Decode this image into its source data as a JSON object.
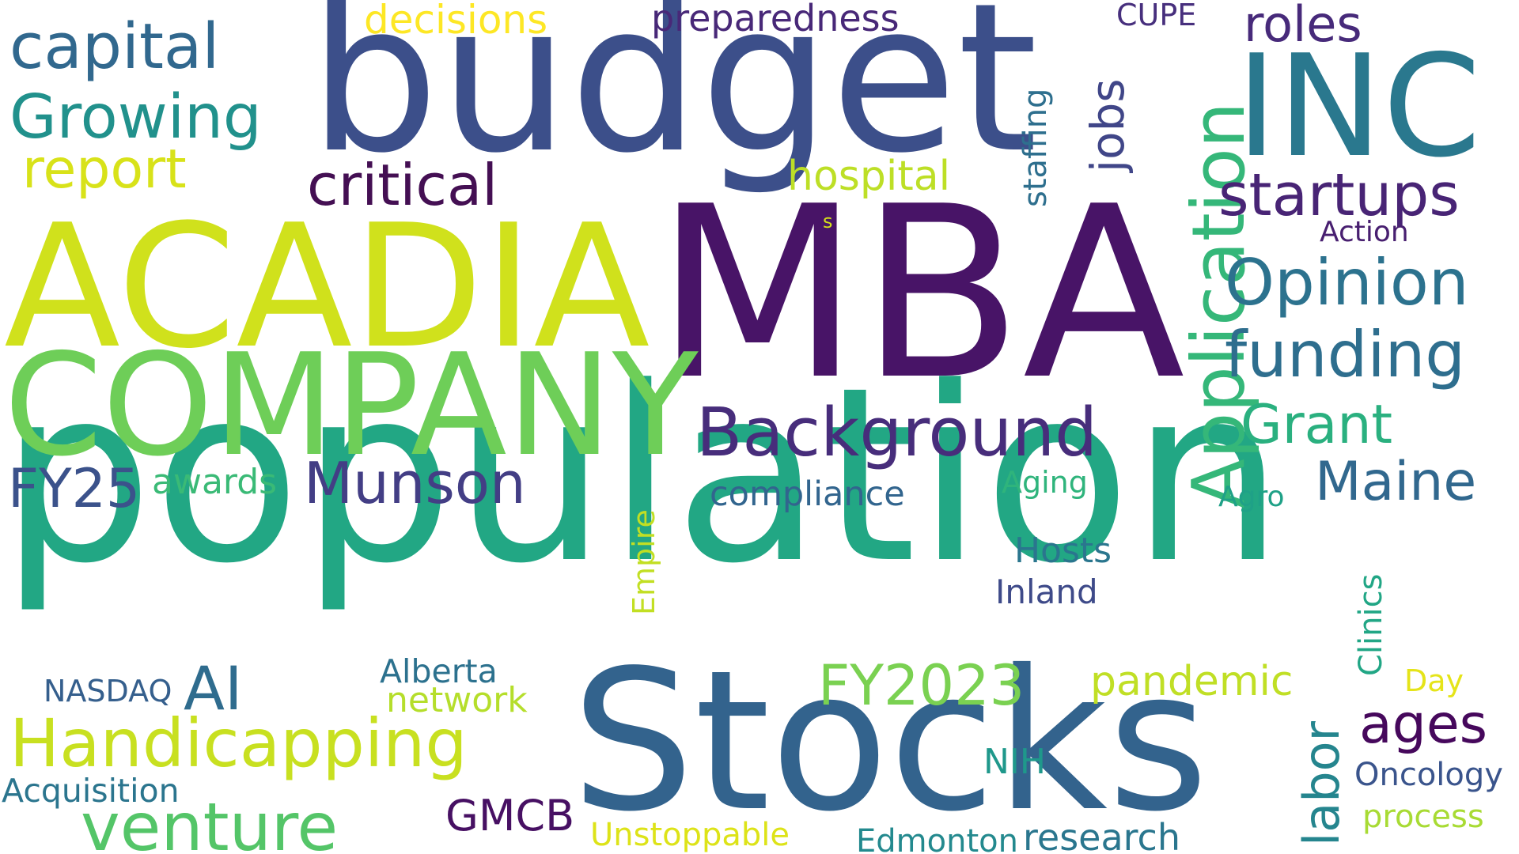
{
  "words": [
    {
      "id": "population",
      "text": "population",
      "color": "#22a784"
    },
    {
      "id": "mba",
      "text": "MBA",
      "color": "#481467"
    },
    {
      "id": "budget",
      "text": "budget",
      "color": "#3c4f8a"
    },
    {
      "id": "stocks",
      "text": "Stocks",
      "color": "#33638d"
    },
    {
      "id": "acadia",
      "text": "ACADIA",
      "color": "#d0e11c"
    },
    {
      "id": "company",
      "text": "COMPANY",
      "color": "#6ece58"
    },
    {
      "id": "inc",
      "text": "INC",
      "color": "#2a788e"
    },
    {
      "id": "application",
      "text": "Application",
      "color": "#35b779"
    },
    {
      "id": "background",
      "text": "Background",
      "color": "#472d7b"
    },
    {
      "id": "handicapping",
      "text": "Handicapping",
      "color": "#c8e020"
    },
    {
      "id": "venture",
      "text": "venture",
      "color": "#54c568"
    },
    {
      "id": "munson",
      "text": "Munson",
      "color": "#433e85"
    },
    {
      "id": "opinion",
      "text": "Opinion",
      "color": "#2c728e"
    },
    {
      "id": "funding",
      "text": "funding",
      "color": "#2e6e8e"
    },
    {
      "id": "startups",
      "text": "startups",
      "color": "#482475"
    },
    {
      "id": "capital",
      "text": "capital",
      "color": "#31688e"
    },
    {
      "id": "growing",
      "text": "Growing",
      "color": "#21918c"
    },
    {
      "id": "critical",
      "text": "critical",
      "color": "#440f53"
    },
    {
      "id": "report",
      "text": "report",
      "color": "#d8e219"
    },
    {
      "id": "maine",
      "text": "Maine",
      "color": "#31688e"
    },
    {
      "id": "grant",
      "text": "Grant",
      "color": "#2ab07f"
    },
    {
      "id": "ages",
      "text": "ages",
      "color": "#46085c"
    },
    {
      "id": "fy2023",
      "text": "FY2023",
      "color": "#7ad151"
    },
    {
      "id": "fy25",
      "text": "FY25",
      "color": "#3b528b"
    },
    {
      "id": "ai",
      "text": "AI",
      "color": "#2f6c8e"
    },
    {
      "id": "jobs",
      "text": "jobs",
      "color": "#404688"
    },
    {
      "id": "labor",
      "text": "labor",
      "color": "#25858e"
    },
    {
      "id": "roles",
      "text": "roles",
      "color": "#472a7a"
    },
    {
      "id": "hospital",
      "text": "hospital",
      "color": "#bddf26"
    },
    {
      "id": "decisions",
      "text": "decisions",
      "color": "#fde725"
    },
    {
      "id": "preparedness",
      "text": "preparedness",
      "color": "#482878"
    },
    {
      "id": "staffing",
      "text": "staffing",
      "color": "#2e6f8e"
    },
    {
      "id": "cupe",
      "text": "CUPE",
      "color": "#472f7d"
    },
    {
      "id": "gmcb",
      "text": "GMCB",
      "color": "#471063"
    },
    {
      "id": "pandemic",
      "text": "pandemic",
      "color": "#c0df25"
    },
    {
      "id": "awards",
      "text": "awards",
      "color": "#3aba76"
    },
    {
      "id": "compliance",
      "text": "compliance",
      "color": "#32658e"
    },
    {
      "id": "research",
      "text": "research",
      "color": "#2a768e"
    },
    {
      "id": "network",
      "text": "network",
      "color": "#b5de2b"
    },
    {
      "id": "alberta",
      "text": "Alberta",
      "color": "#2c718e"
    },
    {
      "id": "nasdaq",
      "text": "NASDAQ",
      "color": "#355f8d"
    },
    {
      "id": "acquisition",
      "text": "Acquisition",
      "color": "#2b758e"
    },
    {
      "id": "unstoppable",
      "text": "Unstoppable",
      "color": "#dde318"
    },
    {
      "id": "edmonton",
      "text": "Edmonton",
      "color": "#23898e"
    },
    {
      "id": "nih",
      "text": "NIH",
      "color": "#1f988b"
    },
    {
      "id": "hosts",
      "text": "Hosts",
      "color": "#2a768e"
    },
    {
      "id": "inland",
      "text": "Inland",
      "color": "#3e4a89"
    },
    {
      "id": "aging",
      "text": "Aging",
      "color": "#2fb47c"
    },
    {
      "id": "agro",
      "text": "Agro",
      "color": "#1fa187"
    },
    {
      "id": "empire",
      "text": "Empire",
      "color": "#c2df23"
    },
    {
      "id": "clinics",
      "text": "Clinics",
      "color": "#21a685"
    },
    {
      "id": "oncology",
      "text": "Oncology",
      "color": "#3a548c"
    },
    {
      "id": "process",
      "text": "process",
      "color": "#a8db34"
    },
    {
      "id": "day",
      "text": "Day",
      "color": "#e5e419"
    },
    {
      "id": "action",
      "text": "Action",
      "color": "#481f70"
    },
    {
      "id": "s",
      "text": "s",
      "color": "#d5e21a"
    }
  ]
}
